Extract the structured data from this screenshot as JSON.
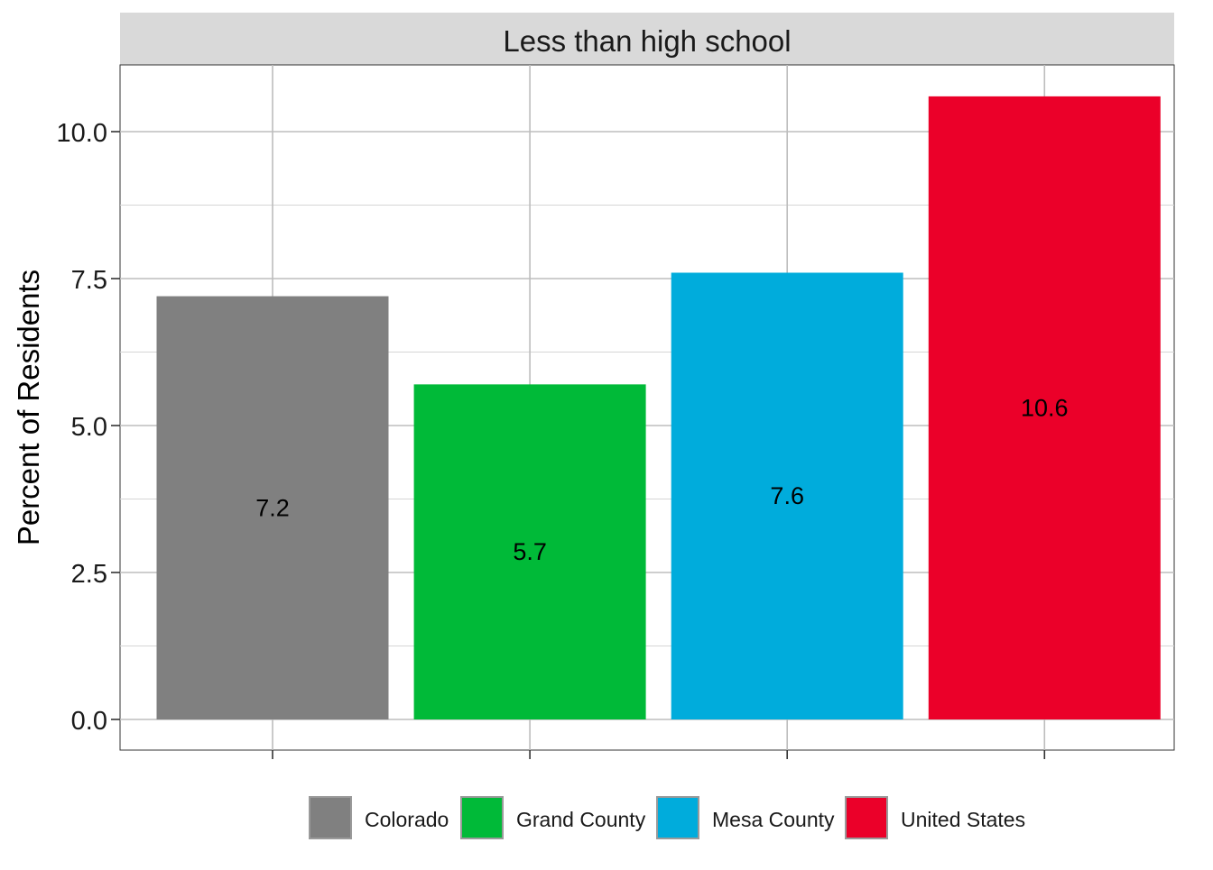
{
  "chart_data": {
    "type": "bar",
    "facet_title": "Less than high school",
    "ylabel": "Percent of Residents",
    "xlabel": "",
    "ylim": [
      0,
      11.1
    ],
    "yticks": [
      "0.0",
      "2.5",
      "5.0",
      "7.5",
      "10.0"
    ],
    "grid": true,
    "legend_position": "bottom",
    "categories": [
      "Colorado",
      "Grand County",
      "Mesa County",
      "United States"
    ],
    "values": [
      7.2,
      5.7,
      7.6,
      10.6
    ],
    "value_labels": [
      "7.2",
      "5.7",
      "7.6",
      "10.6"
    ],
    "colors": [
      "#808080",
      "#00BA38",
      "#00ACDC",
      "#EB0029"
    ]
  }
}
